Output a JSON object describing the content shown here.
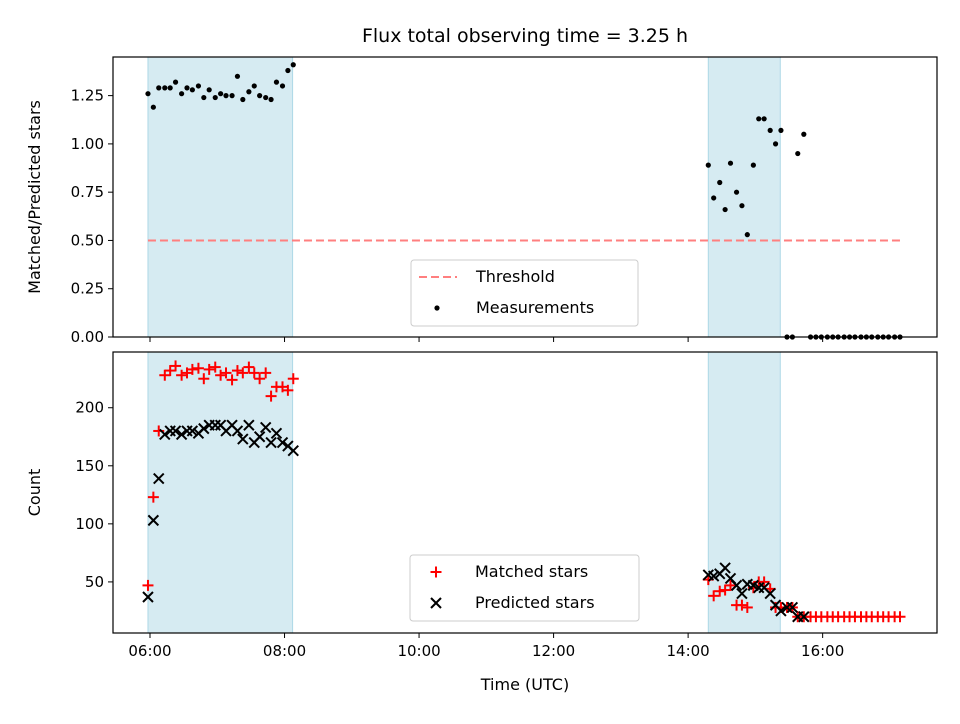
{
  "chart_data": {
    "type": "scatter",
    "title": "Flux total observing time = 3.25 h",
    "xlabel": "Time (UTC)",
    "x_tick_labels": [
      "06:00",
      "08:00",
      "10:00",
      "12:00",
      "14:00",
      "16:00"
    ],
    "x_tick_values_hours": [
      6,
      8,
      10,
      12,
      14,
      16
    ],
    "xlim_hours": [
      5.45,
      17.7
    ],
    "shaded_intervals_hours": [
      [
        5.97,
        8.12
      ],
      [
        14.3,
        15.37
      ]
    ],
    "shade_color": "#add8e6",
    "panels": [
      {
        "ylabel": "Matched/Predicted stars",
        "ylim": [
          0,
          1.45
        ],
        "y_tick_labels": [
          "0.00",
          "0.25",
          "0.50",
          "0.75",
          "1.00",
          "1.25"
        ],
        "y_tick_values": [
          0,
          0.25,
          0.5,
          0.75,
          1.0,
          1.25
        ],
        "threshold": {
          "name": "Threshold",
          "value": 0.5,
          "x_range_hours": [
            5.97,
            17.2
          ],
          "color": "#ff7f7f"
        },
        "legend": [
          "Threshold",
          "Measurements"
        ],
        "series": [
          {
            "name": "Measurements",
            "marker": "dot",
            "color": "#000000",
            "x": [
              5.97,
              6.05,
              6.13,
              6.22,
              6.3,
              6.38,
              6.47,
              6.55,
              6.63,
              6.72,
              6.8,
              6.88,
              6.97,
              7.05,
              7.13,
              7.22,
              7.3,
              7.38,
              7.47,
              7.55,
              7.63,
              7.72,
              7.8,
              7.88,
              7.97,
              8.05,
              8.13,
              14.3,
              14.38,
              14.47,
              14.55,
              14.63,
              14.72,
              14.8,
              14.88,
              14.97,
              15.05,
              15.13,
              15.22,
              15.3,
              15.38,
              15.47,
              15.55,
              15.63,
              15.72,
              15.82,
              15.9,
              15.98,
              16.07,
              16.15,
              16.23,
              16.32,
              16.4,
              16.48,
              16.57,
              16.65,
              16.73,
              16.82,
              16.9,
              16.98,
              17.07,
              17.15
            ],
            "y": [
              1.26,
              1.19,
              1.29,
              1.29,
              1.29,
              1.32,
              1.26,
              1.29,
              1.28,
              1.3,
              1.24,
              1.28,
              1.24,
              1.26,
              1.25,
              1.25,
              1.35,
              1.23,
              1.27,
              1.3,
              1.25,
              1.24,
              1.23,
              1.32,
              1.3,
              1.38,
              1.41,
              0.89,
              0.72,
              0.8,
              0.66,
              0.9,
              0.75,
              0.68,
              0.53,
              0.89,
              1.13,
              1.13,
              1.07,
              1.0,
              1.07,
              0.0,
              0.0,
              0.95,
              1.05,
              0,
              0,
              0,
              0,
              0,
              0,
              0,
              0,
              0,
              0,
              0,
              0,
              0,
              0,
              0,
              0,
              0
            ]
          }
        ]
      },
      {
        "ylabel": "Count",
        "ylim": [
          6,
          248
        ],
        "y_tick_labels": [
          "50",
          "100",
          "150",
          "200"
        ],
        "y_tick_values": [
          50,
          100,
          150,
          200
        ],
        "legend": [
          "Matched stars",
          "Predicted stars"
        ],
        "series": [
          {
            "name": "Matched stars",
            "marker": "plus",
            "color": "#ff0000",
            "x": [
              5.97,
              6.05,
              6.13,
              6.22,
              6.3,
              6.38,
              6.47,
              6.55,
              6.63,
              6.72,
              6.8,
              6.88,
              6.97,
              7.05,
              7.13,
              7.22,
              7.3,
              7.38,
              7.47,
              7.55,
              7.63,
              7.72,
              7.8,
              7.88,
              7.97,
              8.05,
              8.13,
              14.3,
              14.38,
              14.47,
              14.55,
              14.63,
              14.72,
              14.8,
              14.88,
              14.97,
              15.05,
              15.13,
              15.22,
              15.3,
              15.38,
              15.47,
              15.55,
              15.63,
              15.72,
              15.82,
              15.9,
              15.98,
              16.07,
              16.15,
              16.23,
              16.32,
              16.4,
              16.48,
              16.57,
              16.65,
              16.73,
              16.82,
              16.9,
              16.98,
              17.07,
              17.15
            ],
            "y": [
              47,
              123,
              180,
              228,
              232,
              236,
              228,
              230,
              233,
              234,
              225,
              233,
              235,
              228,
              230,
              224,
              232,
              230,
              235,
              230,
              225,
              230,
              210,
              218,
              218,
              215,
              225,
              52,
              38,
              42,
              43,
              47,
              30,
              30,
              28,
              45,
              50,
              50,
              44,
              28,
              28,
              28,
              28,
              20,
              20,
              20,
              20,
              20,
              20,
              20,
              20,
              20,
              20,
              20,
              20,
              20,
              20,
              20,
              20,
              20,
              20,
              20
            ]
          },
          {
            "name": "Predicted stars",
            "marker": "x",
            "color": "#000000",
            "x": [
              5.97,
              6.05,
              6.13,
              6.22,
              6.3,
              6.38,
              6.47,
              6.55,
              6.63,
              6.72,
              6.8,
              6.88,
              6.97,
              7.05,
              7.13,
              7.22,
              7.3,
              7.38,
              7.47,
              7.55,
              7.63,
              7.72,
              7.8,
              7.88,
              7.97,
              8.05,
              8.13,
              14.3,
              14.38,
              14.47,
              14.55,
              14.63,
              14.72,
              14.8,
              14.88,
              14.97,
              15.05,
              15.13,
              15.22,
              15.3,
              15.38,
              15.47,
              15.55,
              15.63,
              15.72
            ],
            "y": [
              37,
              103,
              139,
              177,
              180,
              180,
              177,
              180,
              180,
              178,
              182,
              185,
              185,
              185,
              180,
              185,
              180,
              173,
              185,
              170,
              175,
              183,
              170,
              178,
              170,
              167,
              163,
              56,
              55,
              57,
              62,
              53,
              47,
              40,
              48,
              47,
              45,
              45,
              40,
              30,
              25,
              28,
              28,
              20,
              20
            ]
          }
        ]
      }
    ]
  }
}
